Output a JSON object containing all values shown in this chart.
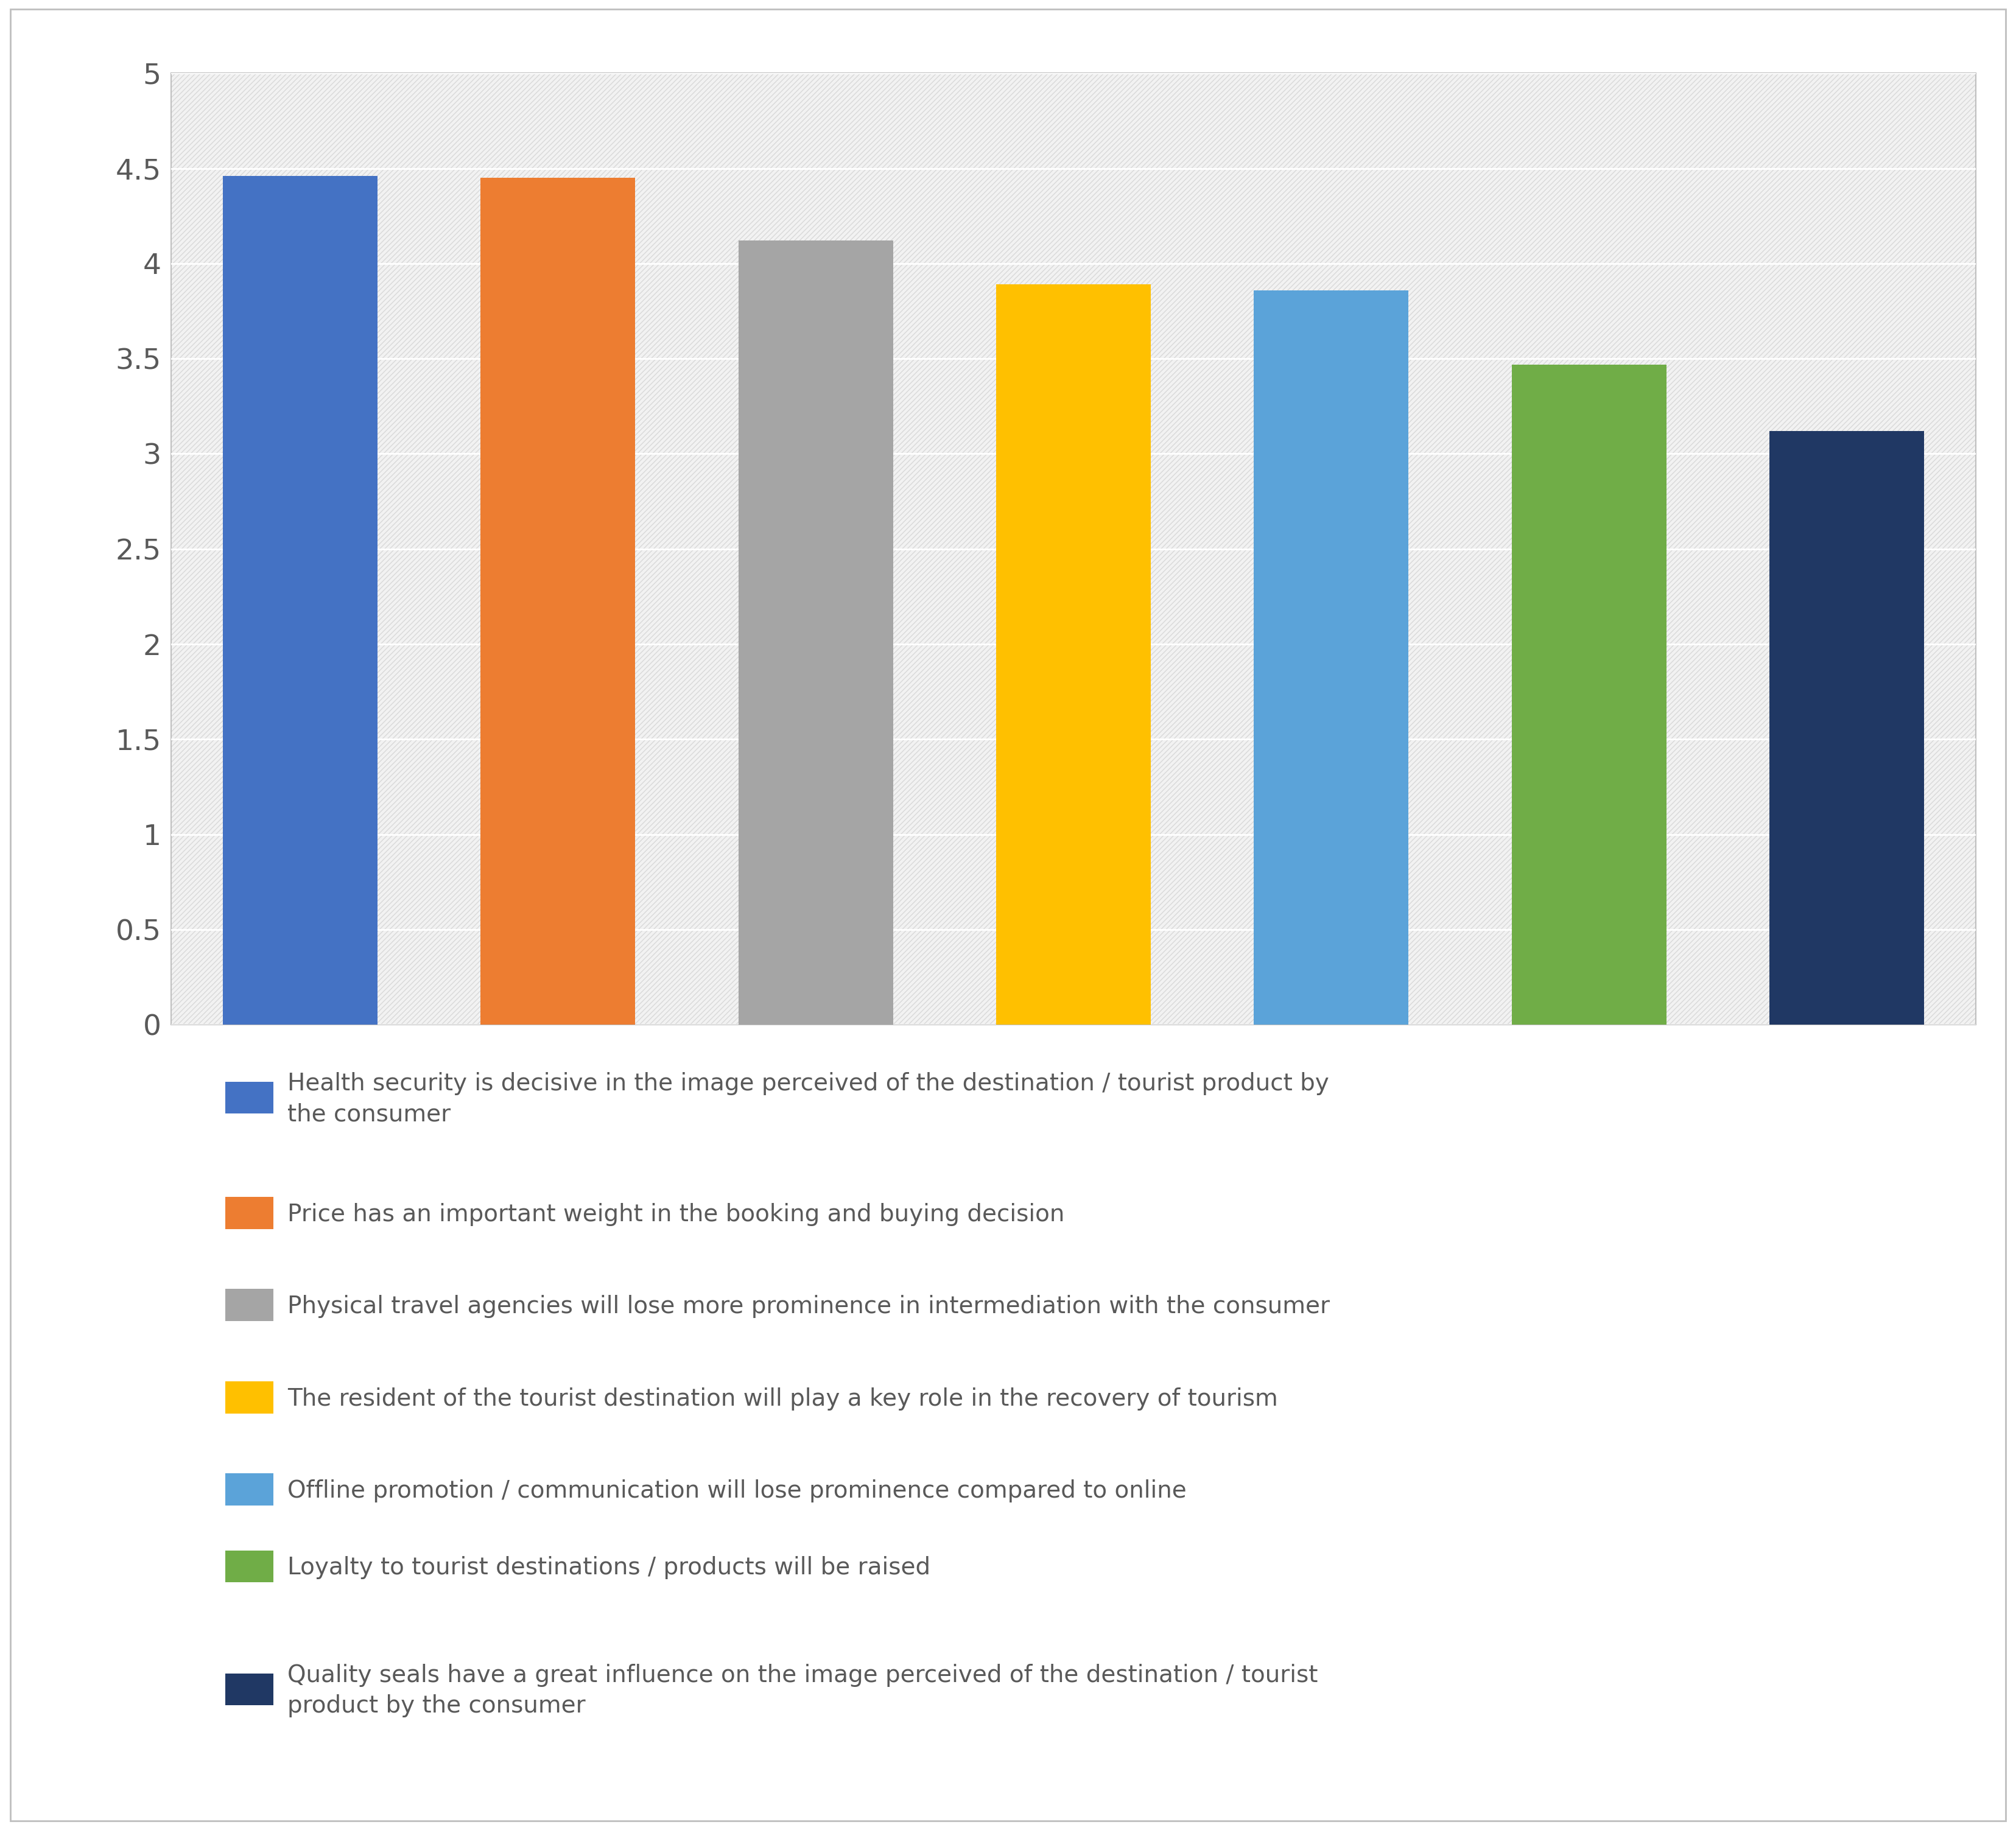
{
  "values": [
    4.46,
    4.45,
    4.12,
    3.89,
    3.86,
    3.47,
    3.12
  ],
  "colors": [
    "#4472C4",
    "#ED7D31",
    "#A5A5A5",
    "#FFC000",
    "#5BA3D9",
    "#70AD47",
    "#203864"
  ],
  "legend_labels": [
    "Health security is decisive in the image perceived of the destination / tourist product by\nthe consumer",
    "Price has an important weight in the booking and buying decision",
    "Physical travel agencies will lose more prominence in intermediation with the consumer",
    "The resident of the tourist destination will play a key role in the recovery of tourism",
    "Offline promotion / communication will lose prominence compared to online",
    "Loyalty to tourist destinations / products will be raised",
    "Quality seals have a great influence on the image perceived of the destination / tourist\nproduct by the consumer"
  ],
  "ylim": [
    0,
    5
  ],
  "yticks": [
    0,
    0.5,
    1.0,
    1.5,
    2.0,
    2.5,
    3.0,
    3.5,
    4.0,
    4.5,
    5.0
  ],
  "background_color": "#FFFFFF",
  "plot_bg_color": "#F2F2F2",
  "grid_color": "#FFFFFF",
  "figure_size": [
    33.11,
    30.06
  ]
}
